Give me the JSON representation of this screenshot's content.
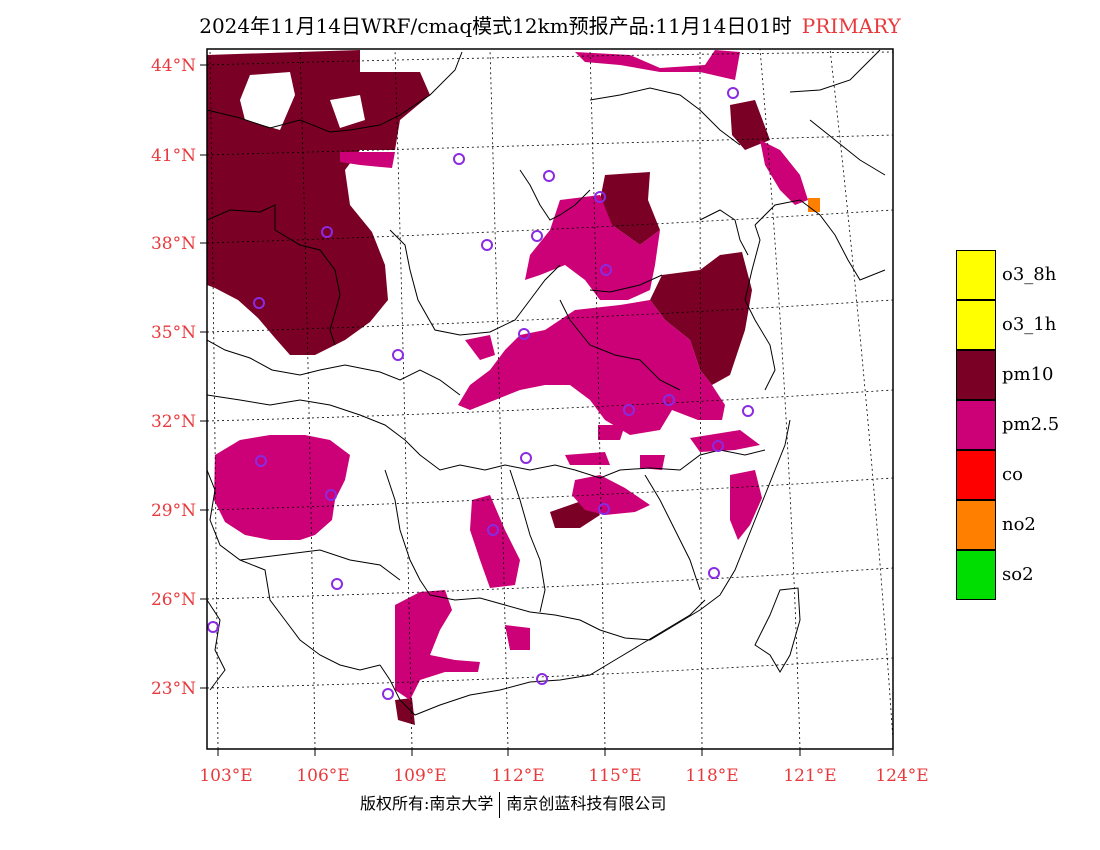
{
  "title": {
    "main": "2024年11月14日WRF/cmaq模式12km预报产品:11月14日01时",
    "tag": "PRIMARY"
  },
  "footer": {
    "left": "版权所有:南京大学",
    "right": "南京创蓝科技有限公司"
  },
  "axes": {
    "lat_labels": [
      "44°N",
      "41°N",
      "38°N",
      "35°N",
      "32°N",
      "29°N",
      "26°N",
      "23°N"
    ],
    "lon_labels": [
      "103°E",
      "106°E",
      "109°E",
      "112°E",
      "115°E",
      "118°E",
      "121°E",
      "124°E"
    ]
  },
  "legend": [
    {
      "label": "o3_8h",
      "color": "#ffff00"
    },
    {
      "label": "o3_1h",
      "color": "#ffff00"
    },
    {
      "label": "pm10",
      "color": "#7a0026"
    },
    {
      "label": "pm2.5",
      "color": "#cc0077"
    },
    {
      "label": "co",
      "color": "#ff0000"
    },
    {
      "label": "no2",
      "color": "#ff7f00"
    },
    {
      "label": "so2",
      "color": "#00dd00"
    }
  ],
  "colors": {
    "pm10": "#7a0026",
    "pm25": "#cc0077",
    "no2": "#ff7f00",
    "station": "#8a2be2",
    "label": "#e8393c"
  }
}
